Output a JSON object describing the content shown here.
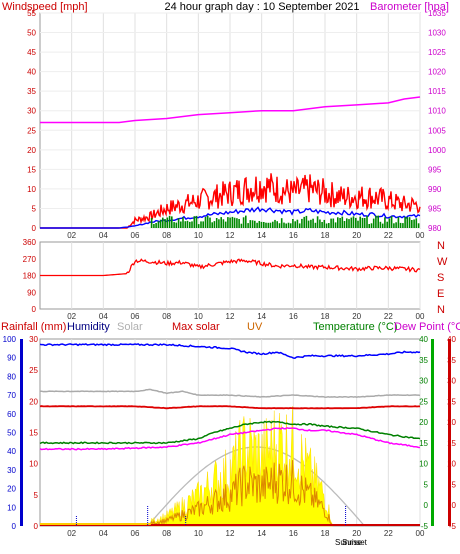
{
  "header": {
    "windspeed_label": "Windspeed [mph]",
    "title": "24 hour graph day : 10 September 2021",
    "barometer_label": "Barometer [hpa]"
  },
  "panel2": {
    "compass": [
      "N",
      "W",
      "S",
      "E",
      "N"
    ]
  },
  "panel3": {
    "labels": {
      "rainfall": "Rainfall (mm)",
      "humidity": "Humidity",
      "solar": "Solar",
      "max_solar": "Max solar",
      "uv": "UV",
      "temperature": "Temperature (°C)",
      "dew_point": "Dew Point (°C)"
    },
    "sunrise": "Sunrise",
    "sunset": "Sunset"
  },
  "x_ticks": [
    "02",
    "04",
    "06",
    "08",
    "10",
    "12",
    "14",
    "16",
    "18",
    "20",
    "22",
    "00"
  ],
  "colors": {
    "wind": "#ff0000",
    "gust": "#0000ff",
    "baro": "#ff00ff",
    "direction": "#ff0000",
    "humidity": "#0000ff",
    "solar": "#c0c0c0",
    "uv": "#ffff00",
    "temperature": "#008000",
    "dew": "#ff00ff"
  },
  "chart_data": [
    {
      "type": "line",
      "title": "24 hour graph day : 10 September 2021",
      "ylabel_left": "Windspeed [mph]",
      "ylabel_right": "Barometer [hpa]",
      "x_hours": [
        0,
        24
      ],
      "ylim_left": [
        0,
        55
      ],
      "left_ticks": [
        0,
        5,
        10,
        15,
        20,
        25,
        30,
        35,
        40,
        45,
        50,
        55
      ],
      "ylim_right": [
        980,
        1035
      ],
      "right_ticks": [
        980,
        985,
        990,
        995,
        1000,
        1005,
        1010,
        1015,
        1020,
        1025,
        1030,
        1035
      ],
      "series": [
        {
          "name": "Barometer",
          "x": [
            0,
            5,
            6,
            8,
            10,
            12,
            14,
            16,
            18,
            20,
            22,
            23,
            24
          ],
          "y": [
            1007,
            1007,
            1007.5,
            1008,
            1009,
            1009.5,
            1010,
            1010,
            1011,
            1011.5,
            1012,
            1013,
            1013.5
          ]
        },
        {
          "name": "Gust",
          "x": [
            0,
            4,
            5.5,
            6,
            7,
            8,
            9,
            10,
            11,
            12,
            13,
            14,
            15,
            16,
            17,
            18,
            19,
            20,
            21,
            22,
            23,
            24
          ],
          "y": [
            0,
            0,
            0,
            2,
            3,
            5,
            6,
            7,
            8,
            9,
            10,
            11,
            10,
            9,
            10,
            9,
            8,
            8,
            8,
            7,
            6,
            6
          ]
        },
        {
          "name": "Wind",
          "x": [
            0,
            5,
            6,
            7,
            8,
            9,
            10,
            11,
            12,
            13,
            14,
            15,
            16,
            17,
            18,
            19,
            20,
            21,
            22,
            23,
            24
          ],
          "y": [
            0,
            0,
            0.5,
            1.5,
            2,
            2.5,
            3,
            3.5,
            4,
            4.5,
            5,
            4.5,
            4,
            4.5,
            4,
            4,
            3.5,
            3.5,
            3,
            3,
            3
          ]
        }
      ]
    },
    {
      "type": "line",
      "ylim": [
        0,
        360
      ],
      "y_ticks": [
        0,
        90,
        180,
        270,
        360
      ],
      "series": [
        {
          "name": "Direction",
          "x": [
            0,
            4,
            5.5,
            6,
            7,
            8,
            9,
            10,
            11,
            12,
            13,
            14,
            15,
            16,
            17,
            18,
            19,
            20,
            21,
            22,
            23,
            24
          ],
          "y": [
            180,
            180,
            190,
            260,
            255,
            245,
            250,
            225,
            240,
            255,
            260,
            245,
            230,
            235,
            225,
            225,
            220,
            215,
            220,
            220,
            215,
            210
          ]
        }
      ]
    },
    {
      "type": "line",
      "ylabel_rain": "Rainfall (mm)",
      "ylabel_humidity": "Humidity",
      "ylabel_temperature": "Temperature (°C)",
      "ylabel_dew": "Dew Point (°C)",
      "rain_ticks": [
        0,
        5,
        10,
        15,
        20,
        25,
        30
      ],
      "humidity_ticks": [
        0,
        10,
        20,
        30,
        40,
        50,
        60,
        70,
        80,
        90,
        100
      ],
      "temp_ticks": [
        -5,
        0,
        5,
        10,
        15,
        20,
        25,
        30,
        35,
        40
      ],
      "series": [
        {
          "name": "Humidity",
          "x": [
            0,
            4,
            8,
            10,
            12,
            13,
            14,
            15,
            16,
            17,
            18,
            20,
            22,
            23,
            24
          ],
          "y": [
            97,
            97,
            97,
            96,
            95,
            93,
            92,
            93,
            90,
            91,
            91,
            91,
            92,
            93,
            93
          ]
        },
        {
          "name": "Solar",
          "x": [
            0,
            6,
            7,
            8,
            9,
            10,
            12,
            14,
            16,
            18,
            20,
            22,
            24
          ],
          "y": [
            72,
            72,
            73,
            71,
            72,
            70,
            70,
            69,
            70,
            69,
            69,
            70,
            70
          ]
        },
        {
          "name": "Max solar",
          "x": [
            0,
            6,
            8,
            10,
            12,
            14,
            16,
            18,
            20,
            22,
            24
          ],
          "y": [
            64,
            64,
            63,
            64,
            64,
            63,
            63,
            63,
            63,
            64,
            64
          ]
        },
        {
          "name": "Temperature",
          "x": [
            0,
            4,
            8,
            10,
            11,
            12,
            13,
            14,
            15,
            16,
            17,
            18,
            20,
            22,
            24
          ],
          "y": [
            15,
            15,
            15,
            16,
            17.5,
            18.5,
            19.5,
            20,
            20,
            19.5,
            19.5,
            19,
            18.5,
            17,
            16
          ]
        },
        {
          "name": "Dew Point",
          "x": [
            0,
            4,
            8,
            10,
            11,
            12,
            13,
            14,
            15,
            16,
            17,
            18,
            20,
            22,
            24
          ],
          "y": [
            13.5,
            13.5,
            14,
            15,
            16,
            17,
            17.5,
            18,
            18.5,
            18.5,
            18,
            18,
            17,
            15,
            14
          ]
        },
        {
          "name": "UV",
          "x": [
            7,
            8,
            9,
            10,
            11,
            12,
            13,
            14,
            15,
            16,
            17,
            18,
            18.5
          ],
          "y": [
            0.5,
            1,
            2,
            3,
            4.5,
            5.5,
            8,
            7,
            8.5,
            8,
            5.5,
            3,
            0
          ]
        }
      ]
    }
  ]
}
